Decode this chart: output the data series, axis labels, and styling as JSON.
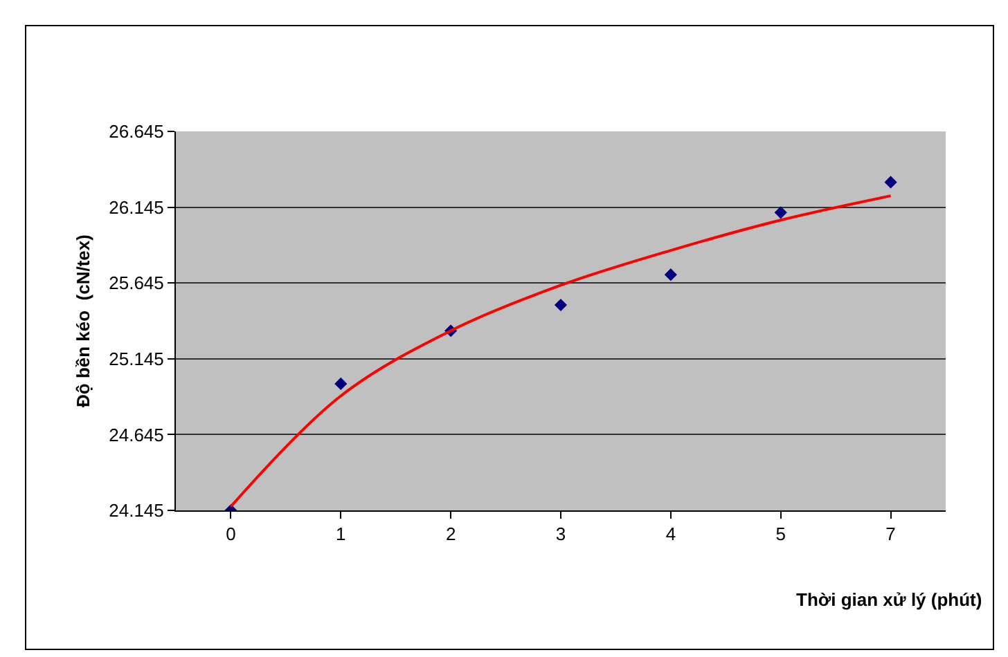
{
  "chart_data": {
    "type": "scatter",
    "xlabel": "Thời gian xử lý (phút)",
    "ylabel": "Độ bền kéo  (cN/tex)",
    "categories": [
      "0",
      "1",
      "2",
      "3",
      "4",
      "5",
      "7"
    ],
    "series": [
      {
        "marker": "diamond",
        "color": "#000080",
        "values": [
          24.145,
          24.98,
          25.33,
          25.5,
          25.7,
          26.11,
          26.31
        ]
      },
      {
        "type": "line",
        "marker": "none",
        "color": "#ff0000",
        "values": [
          24.17,
          24.9,
          25.33,
          25.63,
          25.86,
          26.06,
          26.22
        ]
      }
    ],
    "ylim": [
      24.145,
      26.645
    ],
    "yticks": [
      24.145,
      24.645,
      25.145,
      25.645,
      26.145,
      26.645
    ],
    "grid": "y",
    "legend": false
  }
}
